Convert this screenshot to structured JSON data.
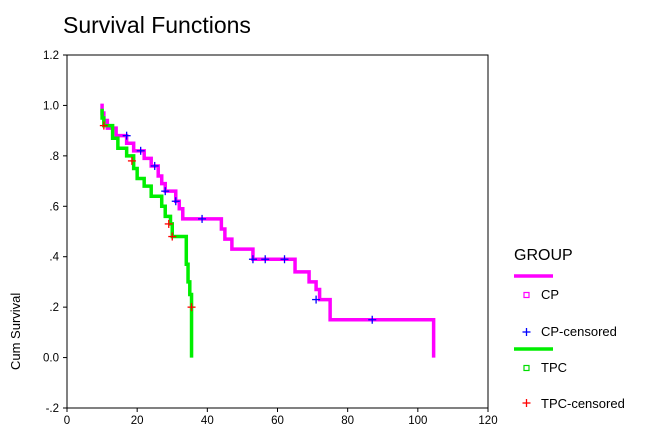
{
  "chart_data": {
    "type": "line",
    "title": "Survival Functions",
    "xlabel": "",
    "ylabel": "Cum Survival",
    "xlim": [
      0,
      120
    ],
    "ylim": [
      -0.2,
      1.2
    ],
    "x_ticks": [
      0,
      20,
      40,
      60,
      80,
      100,
      120
    ],
    "y_ticks": [
      {
        "value": -0.2,
        "label": "-.2"
      },
      {
        "value": 0.0,
        "label": "0.0"
      },
      {
        "value": 0.2,
        "label": ".2"
      },
      {
        "value": 0.4,
        "label": ".4"
      },
      {
        "value": 0.6,
        "label": ".6"
      },
      {
        "value": 0.8,
        "label": ".8"
      },
      {
        "value": 1.0,
        "label": "1.0"
      },
      {
        "value": 1.2,
        "label": "1.2"
      }
    ],
    "grid": false,
    "legend_title": "GROUP",
    "legend_position": "right",
    "series": [
      {
        "name": "CP",
        "color": "#ff00ff",
        "steps": [
          [
            9.5,
            1.0
          ],
          [
            10,
            0.97
          ],
          [
            10.5,
            0.94
          ],
          [
            11.5,
            0.91
          ],
          [
            14,
            0.88
          ],
          [
            17,
            0.85
          ],
          [
            19,
            0.82
          ],
          [
            22,
            0.79
          ],
          [
            24,
            0.76
          ],
          [
            26,
            0.72
          ],
          [
            27,
            0.69
          ],
          [
            28,
            0.66
          ],
          [
            31,
            0.62
          ],
          [
            32,
            0.59
          ],
          [
            33,
            0.55
          ],
          [
            44,
            0.51
          ],
          [
            45,
            0.47
          ],
          [
            47,
            0.43
          ],
          [
            53,
            0.39
          ],
          [
            65,
            0.34
          ],
          [
            69,
            0.3
          ],
          [
            71,
            0.27
          ],
          [
            72,
            0.23
          ],
          [
            75,
            0.15
          ],
          [
            104.5,
            0.15
          ],
          [
            104.5,
            0.0
          ]
        ],
        "censored": [
          [
            17,
            0.88
          ],
          [
            21,
            0.82
          ],
          [
            25,
            0.76
          ],
          [
            28,
            0.66
          ],
          [
            31,
            0.62
          ],
          [
            38.5,
            0.55
          ],
          [
            53,
            0.39
          ],
          [
            56.5,
            0.39
          ],
          [
            62,
            0.39
          ],
          [
            71,
            0.23
          ],
          [
            87,
            0.15
          ]
        ]
      },
      {
        "name": "TPC",
        "color": "#00ee00",
        "steps": [
          [
            9.5,
            0.98
          ],
          [
            10,
            0.95
          ],
          [
            10.5,
            0.92
          ],
          [
            13,
            0.87
          ],
          [
            14.5,
            0.83
          ],
          [
            17,
            0.8
          ],
          [
            19,
            0.75
          ],
          [
            20,
            0.71
          ],
          [
            22,
            0.68
          ],
          [
            24,
            0.64
          ],
          [
            27,
            0.6
          ],
          [
            28,
            0.56
          ],
          [
            29.5,
            0.53
          ],
          [
            30,
            0.48
          ],
          [
            33,
            0.48
          ],
          [
            34,
            0.37
          ],
          [
            34.5,
            0.3
          ],
          [
            35,
            0.25
          ],
          [
            35.5,
            0.2
          ],
          [
            35.5,
            0.0
          ]
        ],
        "censored": [
          [
            10.5,
            0.92
          ],
          [
            18.5,
            0.78
          ],
          [
            29,
            0.53
          ],
          [
            30,
            0.48
          ],
          [
            35.5,
            0.2
          ]
        ]
      }
    ],
    "legend_entries": [
      {
        "label": "CP",
        "marker": "square",
        "color": "#ff00ff"
      },
      {
        "label": "CP-censored",
        "marker": "plus",
        "color": "#0000ff"
      },
      {
        "label": "TPC",
        "marker": "square",
        "color": "#00dd00"
      },
      {
        "label": "TPC-censored",
        "marker": "plus",
        "color": "#ff0000"
      }
    ]
  }
}
